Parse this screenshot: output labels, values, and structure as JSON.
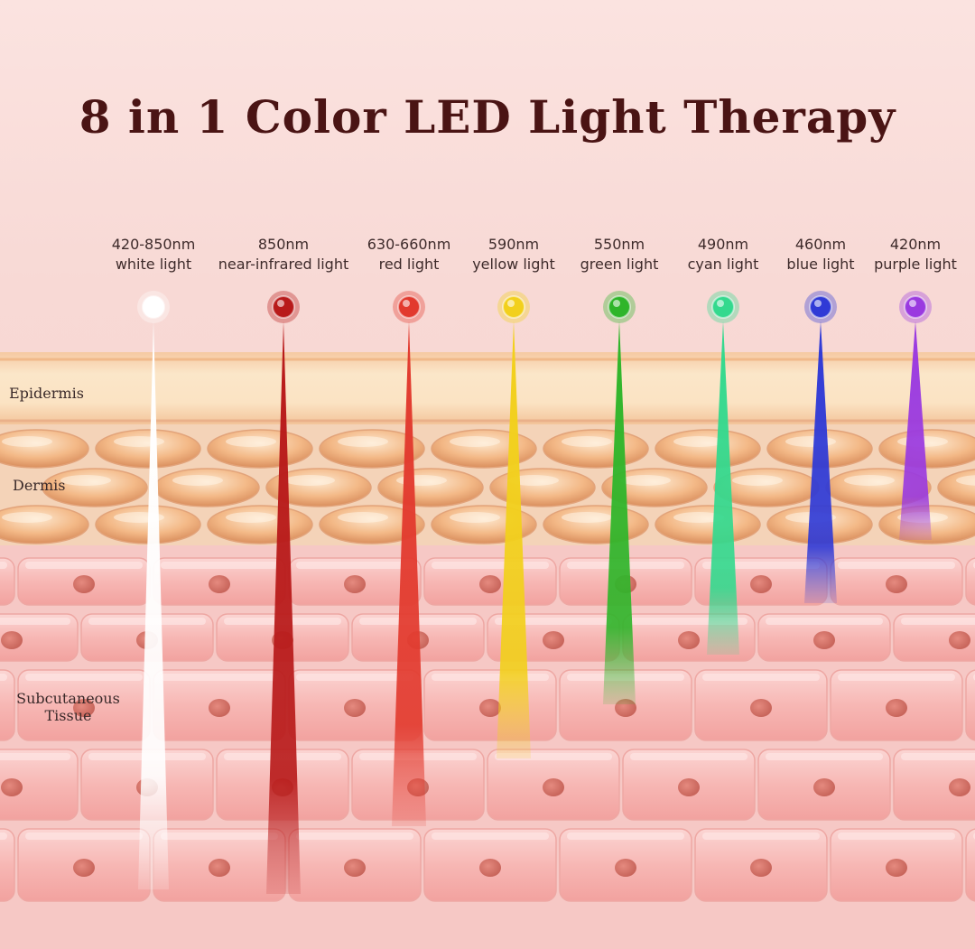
{
  "title": "8 in 1 Color LED Light Therapy",
  "layers": {
    "epidermis": "Epidermis",
    "dermis": "Dermis",
    "subcutaneous_line1": "Subcutaneous",
    "subcutaneous_line2": "Tissue"
  },
  "lights": [
    {
      "wavelength": "420-850nm",
      "name": "white light",
      "color": "#ffffff"
    },
    {
      "wavelength": "850nm",
      "name": "near-infrared light",
      "color": "#b81a1a"
    },
    {
      "wavelength": "630-660nm",
      "name": "red light",
      "color": "#e23a2e"
    },
    {
      "wavelength": "590nm",
      "name": "yellow light",
      "color": "#f2d01c"
    },
    {
      "wavelength": "550nm",
      "name": "green light",
      "color": "#2fb52a"
    },
    {
      "wavelength": "490nm",
      "name": "cyan light",
      "color": "#34d98e"
    },
    {
      "wavelength": "460nm",
      "name": "blue light",
      "color": "#2f3ad6"
    },
    {
      "wavelength": "420nm",
      "name": "purple light",
      "color": "#9a3ae0"
    }
  ]
}
